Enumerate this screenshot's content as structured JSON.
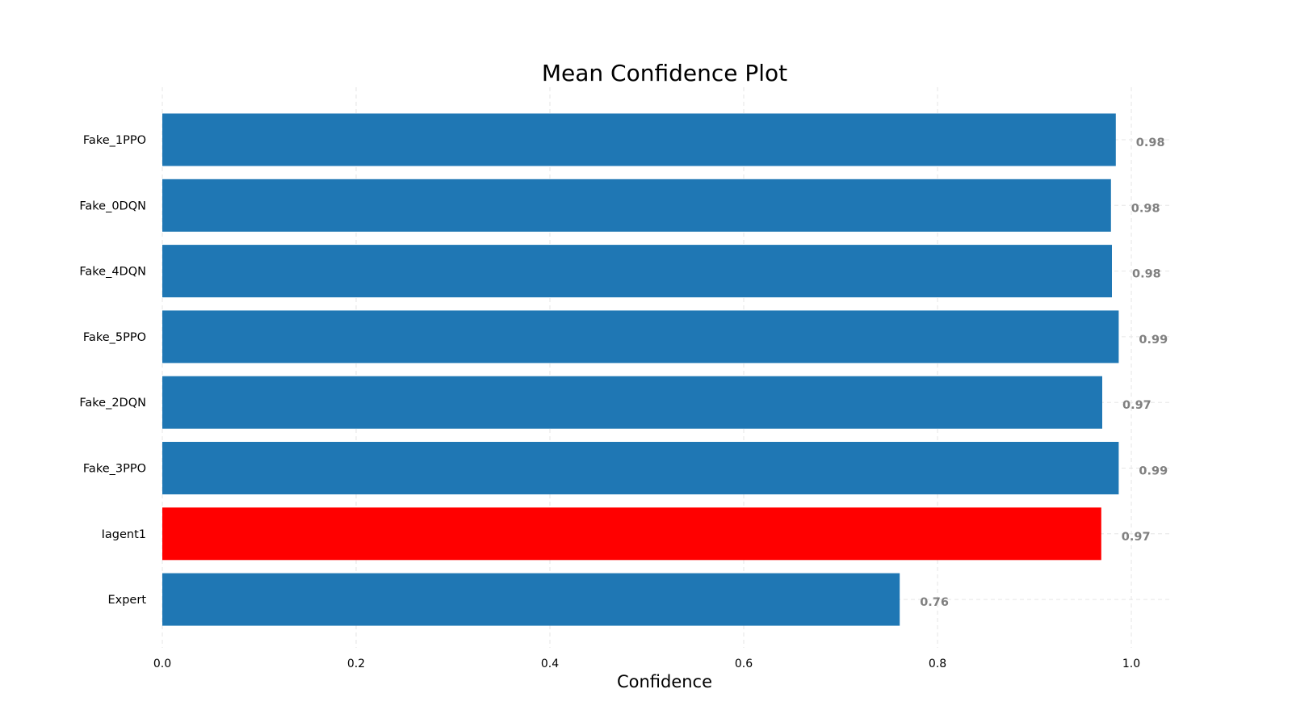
{
  "chart_data": {
    "type": "bar",
    "orientation": "horizontal",
    "title": "Mean Confidence Plot",
    "xlabel": "Confidence",
    "ylabel": "",
    "categories": [
      "Fake_1PPO",
      "Fake_0DQN",
      "Fake_4DQN",
      "Fake_5PPO",
      "Fake_2DQN",
      "Fake_3PPO",
      "Iagent1",
      "Expert"
    ],
    "values": [
      0.984,
      0.979,
      0.98,
      0.987,
      0.97,
      0.987,
      0.969,
      0.761
    ],
    "value_labels": [
      "0.98",
      "0.98",
      "0.98",
      "0.99",
      "0.97",
      "0.99",
      "0.97",
      "0.76"
    ],
    "bar_colors": [
      "#1f77b4",
      "#1f77b4",
      "#1f77b4",
      "#1f77b4",
      "#1f77b4",
      "#1f77b4",
      "#ff0000",
      "#1f77b4"
    ],
    "xlim": [
      0,
      1.04
    ],
    "xticks": [
      0.0,
      0.2,
      0.4,
      0.6,
      0.8,
      1.0
    ],
    "xtick_labels": [
      "0.0",
      "0.2",
      "0.4",
      "0.6",
      "0.8",
      "1.0"
    ],
    "grid": true,
    "grid_style": "dashed",
    "legend": "none"
  }
}
